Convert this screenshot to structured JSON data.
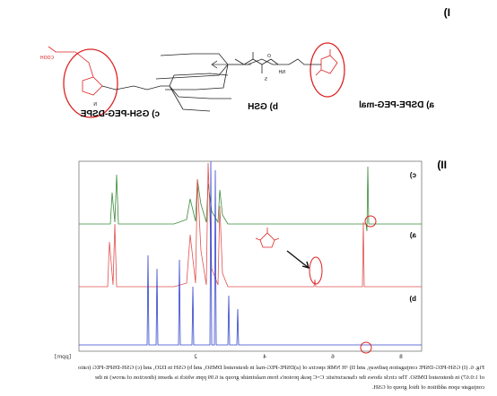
{
  "figure": {
    "panel_labels": [
      "I)",
      "II)"
    ],
    "compounds": {
      "a": "a) DSPE-PEG-mal",
      "b": "b) GSH",
      "c": "c) GSH-PEG-DSPE"
    },
    "structure_labels": {
      "cooh": "COOH",
      "nh": "NH",
      "o": "O",
      "s": "S",
      "n": "N"
    },
    "spectrum": {
      "trace_labels": [
        "c)",
        "a)",
        "b)"
      ],
      "x_axis_label": "[ppm]",
      "x_tick_labels": [
        "2",
        "4",
        "6",
        "8"
      ]
    },
    "caption_lines": [
      "Fig. 6. (I) GSH-PEG-DSPE conjugation pathway, and II) ¹H NMR spectra of (a)DSPE-PEG-mal in deuterated DMSO, and b) GSH in D2O, and (c) GSH-DSPE-PEG (ratio",
      "of 1:0.67) in deuterated DMSO. The circle shows the characteristic C=C peak proton's from maleimide group at 6.99 ppm which is absent (direction of arrow) in the",
      "conjugate upon addition of thiol group of GSH."
    ]
  }
}
